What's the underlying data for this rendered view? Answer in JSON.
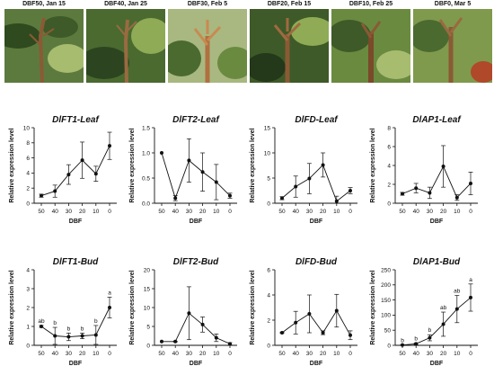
{
  "photos": [
    {
      "label": "DBF50, Jan 15"
    },
    {
      "label": "DBF40, Jan 25"
    },
    {
      "label": "DBF30, Feb 5"
    },
    {
      "label": "DBF20, Feb 15"
    },
    {
      "label": "DBF10, Feb 25"
    },
    {
      "label": "DBF0, Mar 5"
    }
  ],
  "colors": {
    "line": "#111111",
    "leaf_dark": "#3f5a2a",
    "leaf_light": "#7f9a4c",
    "stem": "#7a4a2a"
  },
  "chart_data": [
    {
      "type": "line",
      "title": "DlFT1-Leaf",
      "xlabel": "DBF",
      "ylabel": "Relative expression level",
      "categories": [
        "50",
        "40",
        "30",
        "20",
        "10",
        "0"
      ],
      "values": [
        1.0,
        1.6,
        3.8,
        5.7,
        3.9,
        7.6
      ],
      "errors": [
        0.2,
        0.8,
        1.3,
        2.4,
        1.0,
        1.8
      ],
      "ylim": [
        0,
        10
      ],
      "yticks": [
        0,
        2,
        4,
        6,
        8,
        10
      ],
      "tick_labels": [
        "0",
        "2",
        "4",
        "6",
        "8",
        "10"
      ]
    },
    {
      "type": "line",
      "title": "DlFT2-Leaf",
      "xlabel": "DBF",
      "ylabel": "Relative expression level",
      "categories": [
        "50",
        "40",
        "30",
        "20",
        "10",
        "0"
      ],
      "values": [
        1.0,
        0.1,
        0.85,
        0.62,
        0.42,
        0.15
      ],
      "errors": [
        0.0,
        0.05,
        0.43,
        0.38,
        0.35,
        0.05
      ],
      "ylim": [
        0,
        1.5
      ],
      "yticks": [
        0,
        0.5,
        1.0,
        1.5
      ],
      "tick_labels": [
        "0.0",
        "0.5",
        "1.0",
        "1.5"
      ]
    },
    {
      "type": "line",
      "title": "DlFD-Leaf",
      "xlabel": "DBF",
      "ylabel": "Relative expression level",
      "categories": [
        "50",
        "40",
        "30",
        "20",
        "10",
        "0"
      ],
      "values": [
        1.0,
        3.3,
        4.9,
        7.6,
        0.4,
        2.5
      ],
      "errors": [
        0.3,
        2.1,
        3.0,
        2.4,
        1.0,
        0.6
      ],
      "ylim": [
        0,
        15
      ],
      "yticks": [
        0,
        5,
        10,
        15
      ],
      "tick_labels": [
        "0",
        "5",
        "10",
        "15"
      ]
    },
    {
      "type": "line",
      "title": "DlAP1-Leaf",
      "xlabel": "DBF",
      "ylabel": "Relative expression level",
      "categories": [
        "50",
        "40",
        "30",
        "20",
        "10",
        "0"
      ],
      "values": [
        1.0,
        1.6,
        1.1,
        3.9,
        0.6,
        2.1
      ],
      "errors": [
        0.15,
        0.5,
        0.6,
        2.2,
        0.3,
        1.2
      ],
      "ylim": [
        0,
        8
      ],
      "yticks": [
        0,
        2,
        4,
        6,
        8
      ],
      "tick_labels": [
        "0",
        "2",
        "4",
        "6",
        "8"
      ]
    },
    {
      "type": "line",
      "title": "DlFT1-Bud",
      "xlabel": "DBF",
      "ylabel": "Relative expression level",
      "categories": [
        "50",
        "40",
        "30",
        "20",
        "10",
        "0"
      ],
      "values": [
        1.0,
        0.5,
        0.45,
        0.5,
        0.55,
        2.0
      ],
      "errors": [
        0.05,
        0.45,
        0.2,
        0.15,
        0.5,
        0.55
      ],
      "ylim": [
        0,
        4
      ],
      "yticks": [
        0,
        1,
        2,
        3,
        4
      ],
      "tick_labels": [
        "0",
        "1",
        "2",
        "3",
        "4"
      ],
      "annotations": [
        "ab",
        "b",
        "b",
        "b",
        "b",
        "a"
      ]
    },
    {
      "type": "line",
      "title": "DlFT2-Bud",
      "xlabel": "DBF",
      "ylabel": "Relative expression level",
      "categories": [
        "50",
        "40",
        "30",
        "20",
        "10",
        "0"
      ],
      "values": [
        1.0,
        1.0,
        8.5,
        5.5,
        2.0,
        0.4
      ],
      "errors": [
        0.0,
        0.1,
        7.0,
        2.0,
        1.0,
        0.3
      ],
      "ylim": [
        0,
        20
      ],
      "yticks": [
        0,
        5,
        10,
        15,
        20
      ],
      "tick_labels": [
        "0",
        "5",
        "10",
        "15",
        "20"
      ]
    },
    {
      "type": "line",
      "title": "DlFD-Bud",
      "xlabel": "DBF",
      "ylabel": "Relative expression level",
      "categories": [
        "50",
        "40",
        "30",
        "20",
        "10",
        "0"
      ],
      "values": [
        1.0,
        1.8,
        2.5,
        1.0,
        2.75,
        0.8
      ],
      "errors": [
        0.05,
        0.9,
        1.5,
        0.15,
        1.3,
        0.35
      ],
      "ylim": [
        0,
        6
      ],
      "yticks": [
        0,
        2,
        4,
        6
      ],
      "tick_labels": [
        "0",
        "2",
        "4",
        "6"
      ]
    },
    {
      "type": "line",
      "title": "DlAP1-Bud",
      "xlabel": "DBF",
      "ylabel": "Relative expression level",
      "categories": [
        "50",
        "40",
        "30",
        "20",
        "10",
        "0"
      ],
      "values": [
        1.0,
        5.0,
        25.0,
        70.0,
        120.0,
        158.0
      ],
      "errors": [
        0.5,
        3.0,
        10.0,
        40.0,
        45.0,
        45.0
      ],
      "ylim": [
        0,
        250
      ],
      "yticks": [
        0,
        50,
        100,
        150,
        200,
        250
      ],
      "tick_labels": [
        "0",
        "50",
        "100",
        "150",
        "200",
        "250"
      ],
      "annotations": [
        "b",
        "b",
        "b",
        "ab",
        "ab",
        "a"
      ]
    }
  ]
}
